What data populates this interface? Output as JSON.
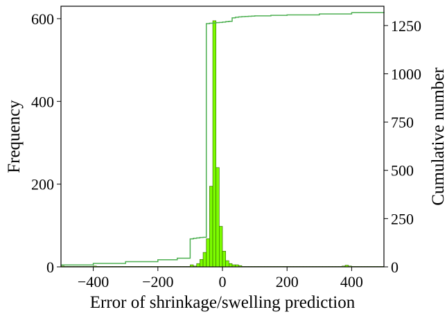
{
  "chart_data": {
    "type": "bar",
    "xlabel": "Error of shrinkage/swelling prediction",
    "ylabel": "Frequency",
    "ylabel_right": "Cumulative number",
    "xlim": [
      -500,
      500
    ],
    "ylim": [
      0,
      630
    ],
    "ylim_right": [
      0,
      1350
    ],
    "x_ticks": [
      -400,
      -200,
      0,
      200,
      400
    ],
    "y_ticks": [
      0,
      200,
      400,
      600
    ],
    "y_ticks_right": [
      0,
      250,
      500,
      750,
      1000,
      1250
    ],
    "bar_width": 10,
    "bar_color": "#7cfc00",
    "bar_edge_color": "#2e5e00",
    "line_color": "#4caf50",
    "grid": false,
    "histogram": {
      "bin_left_edges": [
        -500,
        -490,
        -480,
        -470,
        -460,
        -450,
        -440,
        -430,
        -420,
        -410,
        -400,
        -390,
        -380,
        -370,
        -360,
        -350,
        -340,
        -330,
        -320,
        -310,
        -300,
        -290,
        -280,
        -270,
        -260,
        -250,
        -240,
        -230,
        -220,
        -210,
        -200,
        -190,
        -180,
        -170,
        -160,
        -150,
        -140,
        -130,
        -120,
        -110,
        -100,
        -90,
        -80,
        -70,
        -60,
        -50,
        -40,
        -30,
        -20,
        -10,
        0,
        10,
        20,
        30,
        40,
        50,
        60,
        70,
        80,
        90,
        100,
        110,
        120,
        130,
        140,
        150,
        160,
        170,
        180,
        190,
        200,
        210,
        220,
        230,
        240,
        250,
        260,
        270,
        280,
        290,
        300,
        310,
        320,
        330,
        340,
        350,
        360,
        370,
        380,
        390,
        400,
        410,
        420,
        430,
        440,
        450,
        460,
        470,
        480,
        490
      ],
      "frequencies": [
        2,
        1,
        1,
        1,
        1,
        1,
        1,
        1,
        1,
        1,
        2,
        1,
        1,
        1,
        1,
        1,
        1,
        1,
        1,
        1,
        1,
        1,
        1,
        1,
        1,
        1,
        1,
        1,
        1,
        1,
        1,
        1,
        1,
        1,
        1,
        1,
        1,
        1,
        1,
        1,
        5,
        2,
        8,
        18,
        35,
        68,
        195,
        595,
        240,
        98,
        38,
        15,
        8,
        5,
        5,
        3,
        1,
        1,
        1,
        1,
        1,
        1,
        1,
        1,
        1,
        1,
        1,
        1,
        1,
        1,
        1,
        1,
        1,
        1,
        1,
        1,
        1,
        1,
        1,
        1,
        1,
        1,
        1,
        1,
        1,
        1,
        1,
        2,
        4,
        2,
        1,
        1,
        1,
        1,
        1,
        1,
        1,
        1,
        1,
        1
      ]
    },
    "cumulative": {
      "x": [
        -500,
        -400,
        -300,
        -200,
        -140,
        -100,
        -90,
        -80,
        -70,
        -60,
        -50,
        -40,
        -30,
        -20,
        -10,
        0,
        10,
        20,
        30,
        40,
        50,
        60,
        70,
        80,
        90,
        100,
        150,
        200,
        300,
        400,
        500
      ],
      "y": [
        10,
        18,
        27,
        37,
        45,
        145,
        148,
        150,
        152,
        153,
        1260,
        1262,
        1263,
        1265,
        1266,
        1268,
        1270,
        1272,
        1290,
        1293,
        1295,
        1296,
        1297,
        1298,
        1299,
        1300,
        1303,
        1305,
        1310,
        1317,
        1320
      ]
    }
  }
}
